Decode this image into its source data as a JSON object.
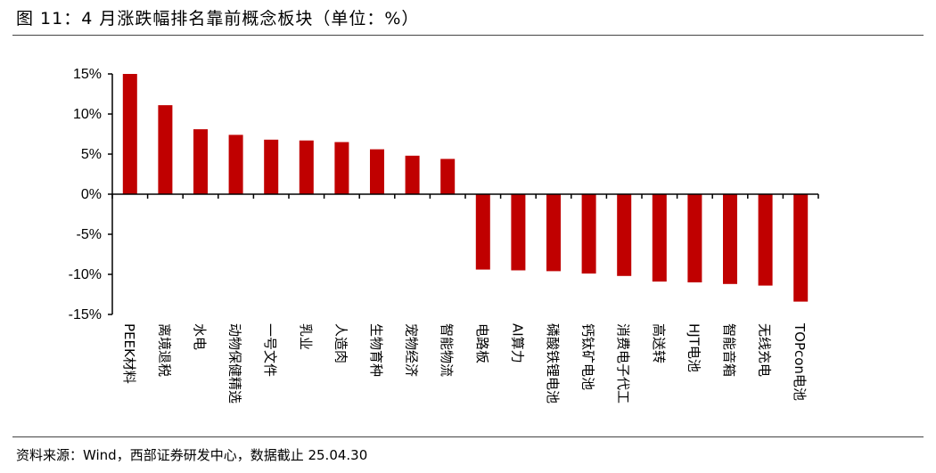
{
  "header": {
    "title": "图 11：4 月涨跌幅排名靠前概念板块（单位：%）"
  },
  "footer": {
    "source": "资料来源：Wind，西部证券研发中心，数据截止 25.04.30"
  },
  "chart_data": {
    "type": "bar",
    "title": "4 月涨跌幅排名靠前概念板块（单位：%）",
    "xlabel": "",
    "ylabel": "",
    "ylim": [
      -15,
      15
    ],
    "yticks": [
      15,
      10,
      5,
      0,
      -5,
      -10,
      -15
    ],
    "ytick_labels": [
      "15%",
      "10%",
      "5%",
      "0%",
      "-5%",
      "-10%",
      "-15%"
    ],
    "grid": false,
    "legend": "none",
    "bar_color": "#c00000",
    "categories": [
      "PEEK材料",
      "离境退税",
      "水电",
      "动物保健精选",
      "一号文件",
      "乳业",
      "人造肉",
      "生物育种",
      "宠物经济",
      "智能物流",
      "电路板",
      "AI算力",
      "磷酸铁锂电池",
      "钙钛矿电池",
      "消费电子代工",
      "高送转",
      "HJT电池",
      "智能音箱",
      "无线充电",
      "TOPcon电池"
    ],
    "values": [
      15.0,
      11.1,
      8.1,
      7.4,
      6.8,
      6.7,
      6.5,
      5.6,
      4.8,
      4.4,
      -9.4,
      -9.5,
      -9.6,
      -9.9,
      -10.2,
      -10.9,
      -11.0,
      -11.2,
      -11.4,
      -13.4
    ]
  }
}
